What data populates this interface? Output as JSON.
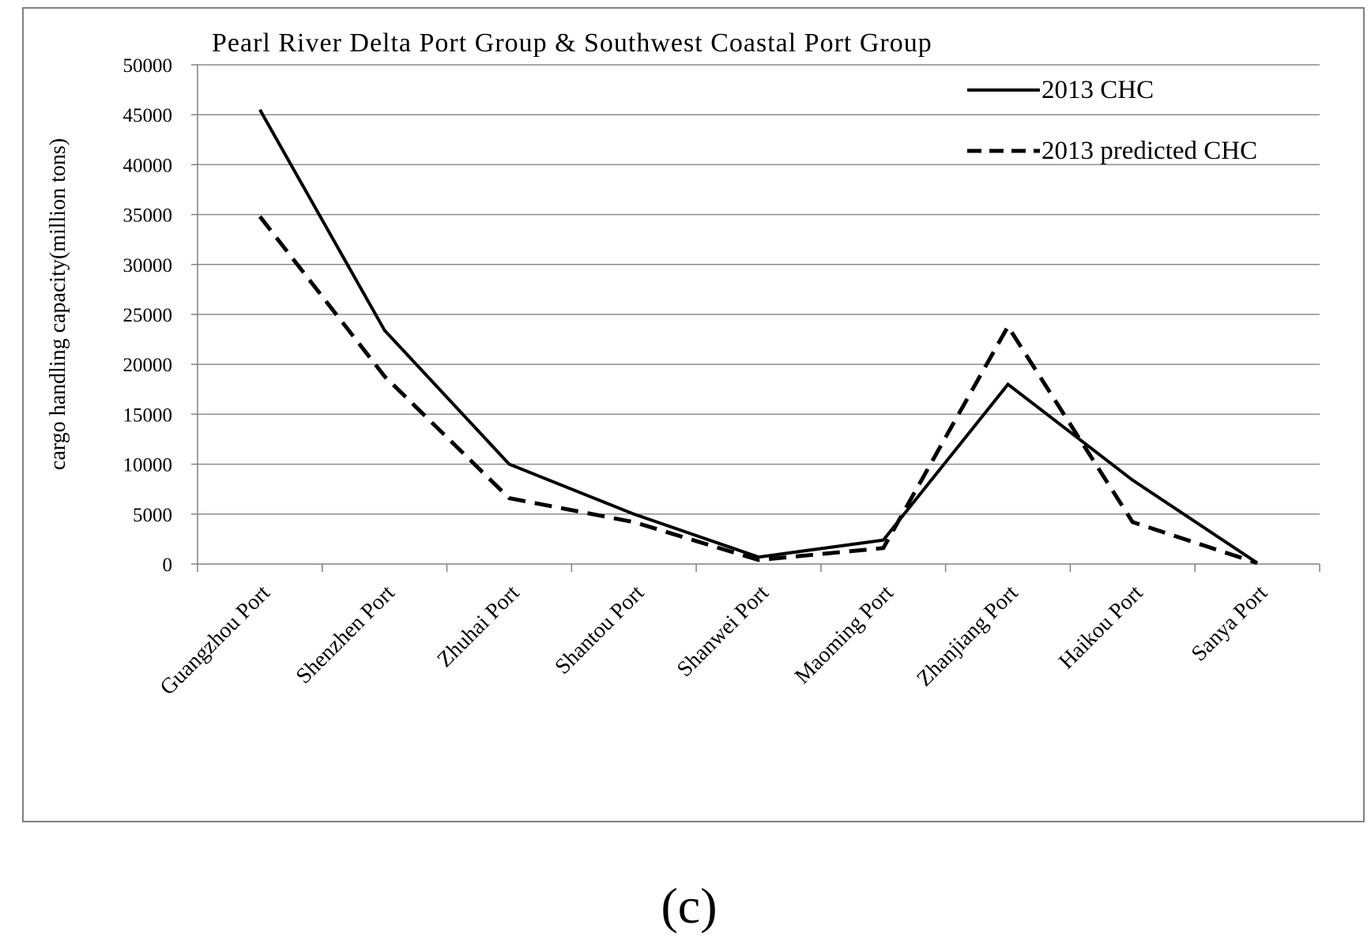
{
  "chart_data": {
    "type": "line",
    "title": "Pearl River Delta Port Group & Southwest Coastal Port Group",
    "xlabel": "",
    "ylabel": "cargo handling capacity(million tons)",
    "ylim": [
      0,
      50000
    ],
    "yticks": [
      0,
      5000,
      10000,
      15000,
      20000,
      25000,
      30000,
      35000,
      40000,
      45000,
      50000
    ],
    "grid": true,
    "legend_position": "top-right",
    "categories": [
      "Guangzhou Port",
      "Shenzhen Port",
      "Zhuhai Port",
      "Shantou Port",
      "Shanwei Port",
      "Maoming Port",
      "Zhanjiang Port",
      "Haikou Port",
      "Sanya Port"
    ],
    "series": [
      {
        "name": "2013 CHC",
        "style": "solid",
        "color": "#000000",
        "values": [
          45500,
          23400,
          10000,
          5000,
          700,
          2400,
          18000,
          8400,
          100
        ]
      },
      {
        "name": "2013 predicted CHC",
        "style": "dashed",
        "color": "#000000",
        "values": [
          34800,
          18800,
          6600,
          4200,
          400,
          1600,
          23800,
          4200,
          100
        ]
      }
    ]
  },
  "caption": "(c)"
}
